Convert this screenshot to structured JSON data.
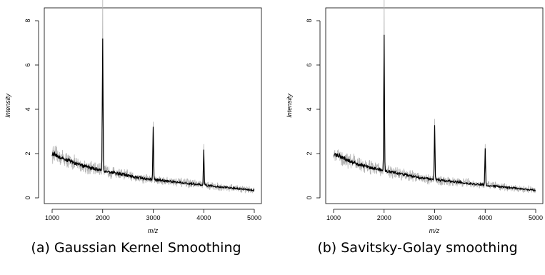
{
  "chart_data": [
    {
      "type": "line",
      "caption": "(a) Gaussian Kernel Smoothing",
      "xlabel": "m/z",
      "ylabel": "Intensity",
      "xlim": [
        1000,
        5000
      ],
      "ylim": [
        0,
        9
      ],
      "xticks": [
        1000,
        2000,
        3000,
        4000,
        5000
      ],
      "yticks": [
        0,
        2,
        4,
        6,
        8
      ],
      "grid": false,
      "legend": "none",
      "baseline": {
        "x": [
          1000,
          1250,
          1500,
          1750,
          2000,
          2250,
          2500,
          2750,
          3000,
          3250,
          3500,
          3750,
          4000,
          4250,
          4500,
          4750,
          5000
        ],
        "y": [
          2.0,
          1.75,
          1.52,
          1.36,
          1.23,
          1.12,
          1.0,
          0.9,
          0.83,
          0.76,
          0.7,
          0.64,
          0.58,
          0.51,
          0.46,
          0.4,
          0.34
        ]
      },
      "peaks": [
        {
          "x": 2000,
          "raw_height": 9.05,
          "smoothed_height": 7.25
        },
        {
          "x": 3000,
          "raw_height": 3.45,
          "smoothed_height": 3.2
        },
        {
          "x": 4000,
          "raw_height": 2.25,
          "smoothed_height": 2.2
        }
      ],
      "colors": {
        "raw": "#b3b3b3",
        "smoothed": "#000000"
      }
    },
    {
      "type": "line",
      "caption": "(b) Savitsky-Golay smoothing",
      "xlabel": "m/z",
      "ylabel": "Intensity",
      "xlim": [
        1000,
        5000
      ],
      "ylim": [
        0,
        9
      ],
      "xticks": [
        1000,
        2000,
        3000,
        4000,
        5000
      ],
      "yticks": [
        0,
        2,
        4,
        6,
        8
      ],
      "grid": false,
      "legend": "none",
      "baseline": {
        "x": [
          1000,
          1250,
          1500,
          1750,
          2000,
          2250,
          2500,
          2750,
          3000,
          3250,
          3500,
          3750,
          4000,
          4250,
          4500,
          4750,
          5000
        ],
        "y": [
          2.0,
          1.75,
          1.52,
          1.36,
          1.23,
          1.12,
          1.0,
          0.9,
          0.83,
          0.76,
          0.7,
          0.64,
          0.58,
          0.51,
          0.46,
          0.4,
          0.34
        ]
      },
      "peaks": [
        {
          "x": 2000,
          "raw_height": 9.05,
          "smoothed_height": 7.3
        },
        {
          "x": 3000,
          "raw_height": 3.5,
          "smoothed_height": 3.3
        },
        {
          "x": 4000,
          "raw_height": 2.3,
          "smoothed_height": 2.25
        }
      ],
      "colors": {
        "raw": "#b3b3b3",
        "smoothed": "#000000"
      }
    }
  ]
}
